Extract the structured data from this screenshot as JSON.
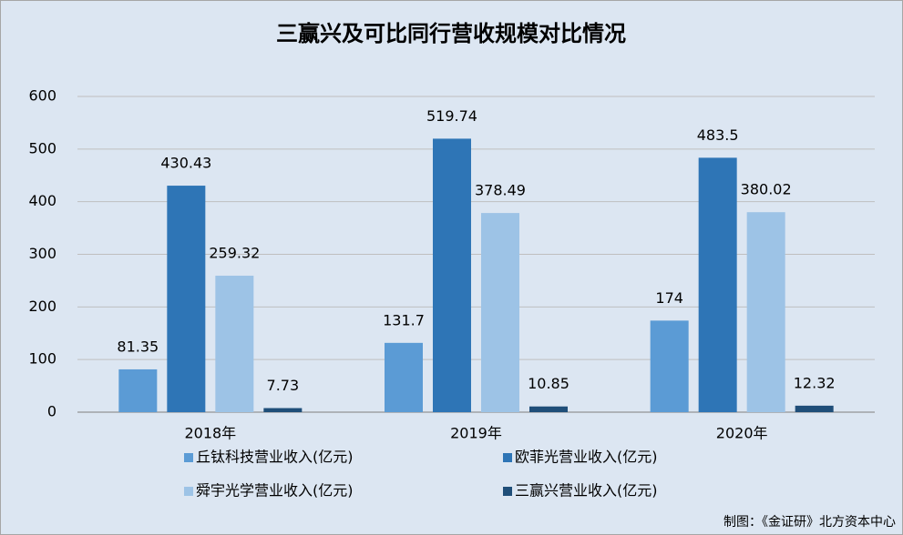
{
  "chart_data": {
    "type": "bar",
    "title": "三赢兴及可比同行营收规模对比情况",
    "categories": [
      "2018年",
      "2019年",
      "2020年"
    ],
    "series": [
      {
        "name": "丘钛科技营业收入(亿元)",
        "color": "#5b9bd5",
        "values": [
          81.35,
          131.7,
          174
        ]
      },
      {
        "name": "欧菲光营业收入(亿元)",
        "color": "#2e75b6",
        "values": [
          430.43,
          519.74,
          483.5
        ]
      },
      {
        "name": "舜宇光学营业收入(亿元)",
        "color": "#9dc3e6",
        "values": [
          259.32,
          378.49,
          380.02
        ]
      },
      {
        "name": "三赢兴营业收入(亿元)",
        "color": "#1f4e79",
        "values": [
          7.73,
          10.85,
          12.32
        ]
      }
    ],
    "ylim": [
      0,
      600
    ],
    "yticks": [
      0,
      100,
      200,
      300,
      400,
      500,
      600
    ],
    "grid": true,
    "note": "制图：《金证研》北方资本中心"
  }
}
